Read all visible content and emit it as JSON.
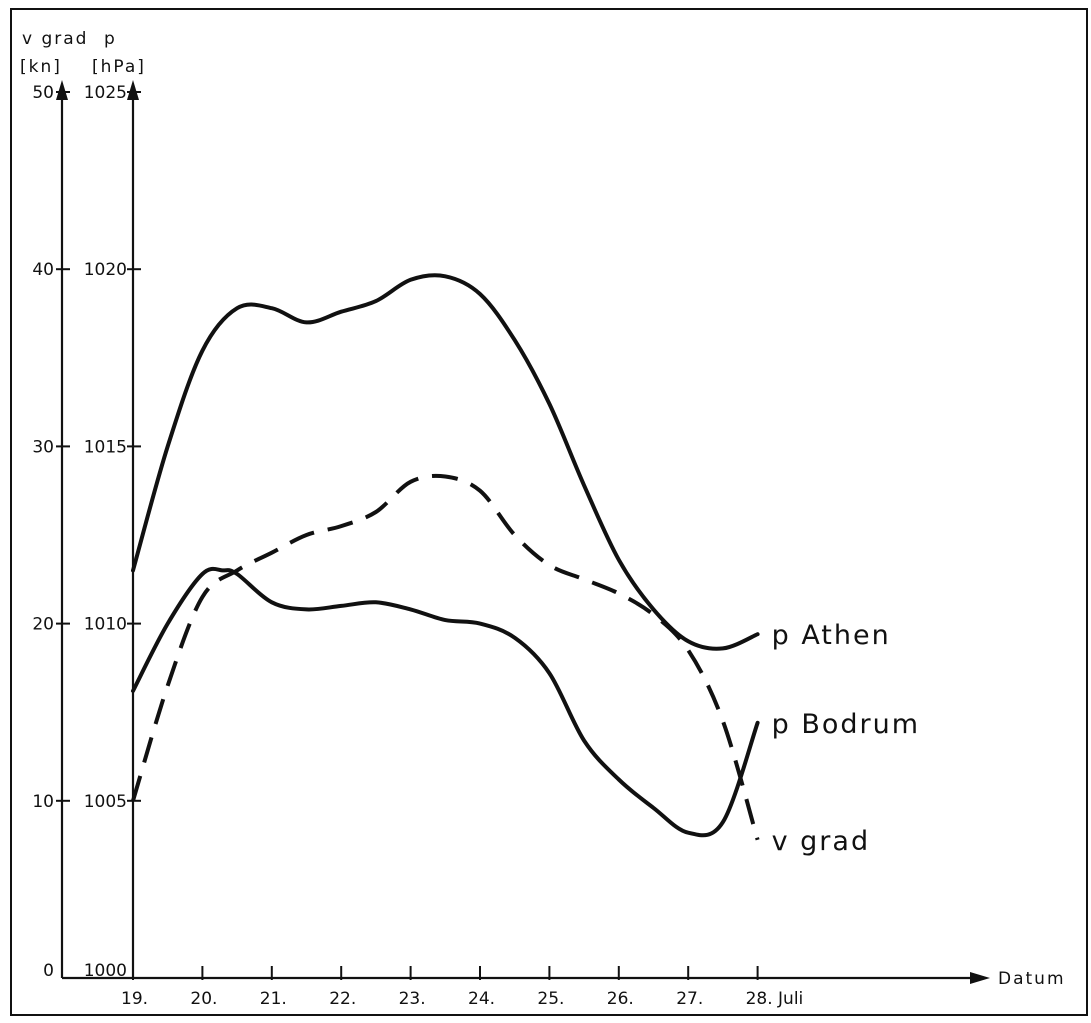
{
  "chart_data": {
    "type": "line",
    "xlabel": "Datum",
    "x_tick_labels": [
      "19.",
      "20.",
      "21.",
      "22.",
      "23.",
      "24.",
      "25.",
      "26.",
      "27.",
      "28. Juli"
    ],
    "x_values": [
      19,
      20,
      21,
      22,
      23,
      24,
      25,
      26,
      27,
      28
    ],
    "axes": {
      "left": {
        "label_top": "v grad",
        "unit": "[kn]",
        "ylim": [
          0,
          50
        ],
        "ticks": [
          0,
          10,
          20,
          30,
          40,
          50
        ],
        "tick_labels": [
          "0",
          "10",
          "20",
          "30",
          "40",
          "50"
        ]
      },
      "right": {
        "label_top": "p",
        "unit": "[hPa]",
        "ylim": [
          1000,
          1025
        ],
        "ticks": [
          1000,
          1005,
          1010,
          1015,
          1020,
          1025
        ],
        "tick_labels": [
          "1000",
          "1005",
          "1010",
          "1015",
          "1020",
          "1025"
        ]
      }
    },
    "grid": false,
    "legend": "inline labels at right end of each curve",
    "series": [
      {
        "name": "p Athen",
        "axis": "right",
        "style": "solid",
        "x": [
          19.0,
          19.5,
          20.0,
          20.5,
          21.0,
          21.5,
          22.0,
          22.5,
          23.0,
          23.5,
          24.0,
          24.5,
          25.0,
          25.5,
          26.0,
          26.5,
          27.0,
          27.5,
          28.0
        ],
        "y": [
          1011.5,
          1015.0,
          1017.7,
          1018.9,
          1018.9,
          1018.5,
          1018.8,
          1019.1,
          1019.7,
          1019.8,
          1019.3,
          1018.0,
          1016.2,
          1013.9,
          1011.8,
          1010.4,
          1009.5,
          1009.3,
          1009.7
        ]
      },
      {
        "name": "p Bodrum",
        "axis": "right",
        "style": "solid",
        "x": [
          19.0,
          19.5,
          20.0,
          20.3,
          20.5,
          21.0,
          21.5,
          22.0,
          22.5,
          23.0,
          23.5,
          24.0,
          24.5,
          25.0,
          25.5,
          26.0,
          26.5,
          27.0,
          27.5,
          28.0
        ],
        "y": [
          1008.1,
          1010.0,
          1011.4,
          1011.5,
          1011.4,
          1010.6,
          1010.4,
          1010.5,
          1010.6,
          1010.4,
          1010.1,
          1010.0,
          1009.6,
          1008.6,
          1006.7,
          1005.6,
          1004.8,
          1004.1,
          1004.4,
          1007.2
        ]
      },
      {
        "name": "v grad",
        "axis": "left",
        "style": "dashed",
        "x": [
          19.0,
          19.5,
          20.0,
          20.5,
          21.0,
          21.5,
          22.0,
          22.5,
          23.0,
          23.5,
          24.0,
          24.5,
          25.0,
          25.5,
          26.0,
          26.5,
          27.0,
          27.5,
          28.0
        ],
        "y": [
          10.0,
          16.5,
          21.5,
          23.0,
          24.0,
          25.0,
          25.5,
          26.3,
          28.0,
          28.3,
          27.5,
          25.0,
          23.3,
          22.5,
          21.7,
          20.5,
          18.5,
          14.5,
          7.8
        ]
      }
    ]
  }
}
